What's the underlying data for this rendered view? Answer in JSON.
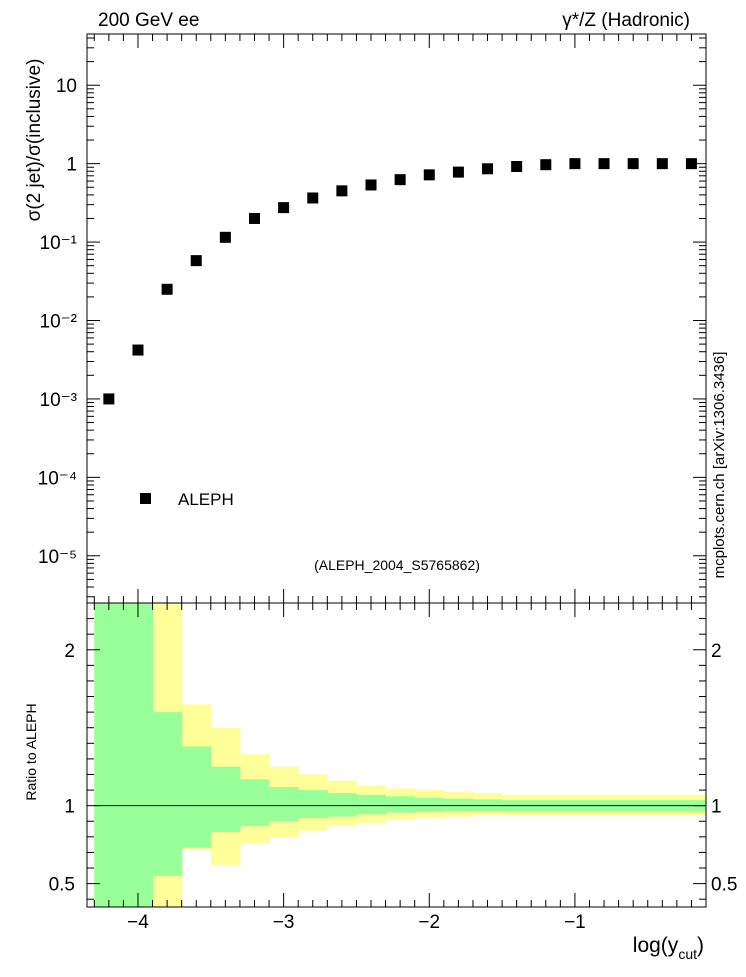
{
  "header": {
    "left_label": "200 GeV ee",
    "right_label": "γ*/Z (Hadronic)"
  },
  "side_label": "mcplots.cern.ch [arXiv:1306.3436]",
  "chart_data": [
    {
      "type": "scatter",
      "panel": "main",
      "ylabel": "σ(2 jet)/σ(inclusive)",
      "yscale": "log",
      "ylim": [
        2.5e-06,
        45
      ],
      "xlim": [
        -4.35,
        -0.1
      ],
      "ytick_labels": [
        "10",
        "1",
        "10⁻¹",
        "10⁻²",
        "10⁻³",
        "10⁻⁴",
        "10⁻⁵"
      ],
      "legend": {
        "position": "bottom-left",
        "entries": [
          "ALEPH"
        ]
      },
      "annotation": "(ALEPH_2004_S5765862)",
      "series": [
        {
          "name": "ALEPH",
          "marker": "square",
          "color": "#000000",
          "x": [
            -4.2,
            -4.0,
            -3.8,
            -3.6,
            -3.4,
            -3.2,
            -3.0,
            -2.8,
            -2.6,
            -2.4,
            -2.2,
            -2.0,
            -1.8,
            -1.6,
            -1.4,
            -1.2,
            -1.0,
            -0.8,
            -0.6,
            -0.4,
            -0.2
          ],
          "y": [
            0.001,
            0.0042,
            0.025,
            0.058,
            0.115,
            0.2,
            0.275,
            0.365,
            0.45,
            0.535,
            0.625,
            0.72,
            0.78,
            0.86,
            0.92,
            0.97,
            1.0,
            1.0,
            1.0,
            1.0,
            1.0
          ]
        }
      ]
    },
    {
      "type": "area",
      "panel": "ratio",
      "ylabel": "Ratio to ALEPH",
      "xlabel": "log(y_cut)",
      "xlabel_main": "log(y",
      "xlabel_sub": "cut",
      "xlabel_close": ")",
      "ylim": [
        0.35,
        2.3
      ],
      "xlim": [
        -4.35,
        -0.1
      ],
      "ytick_labels": [
        "2",
        "1",
        "0.5"
      ],
      "xtick_labels": [
        "−4",
        "−3",
        "−2",
        "−1"
      ],
      "reference_line": 1.0,
      "colors": {
        "inner": "#99ff99",
        "outer": "#ffff99",
        "line": "#000000"
      },
      "bin_edges": [
        -4.3,
        -4.1,
        -3.9,
        -3.7,
        -3.5,
        -3.3,
        -3.1,
        -2.9,
        -2.7,
        -2.5,
        -2.3,
        -2.1,
        -1.9,
        -1.7,
        -1.5,
        -1.3,
        -1.1,
        -0.9,
        -0.7,
        -0.5,
        -0.3,
        -0.1
      ],
      "inner_band": {
        "upper": [
          2.3,
          2.3,
          1.6,
          1.38,
          1.25,
          1.17,
          1.12,
          1.1,
          1.08,
          1.07,
          1.06,
          1.05,
          1.045,
          1.04,
          1.035,
          1.035,
          1.035,
          1.035,
          1.035,
          1.035,
          1.035
        ],
        "lower": [
          0.35,
          0.35,
          0.55,
          0.73,
          0.83,
          0.87,
          0.9,
          0.92,
          0.93,
          0.945,
          0.955,
          0.96,
          0.965,
          0.965,
          0.965,
          0.965,
          0.965,
          0.965,
          0.965,
          0.965,
          0.965
        ]
      },
      "outer_band": {
        "upper": [
          2.3,
          2.3,
          2.3,
          1.65,
          1.5,
          1.33,
          1.25,
          1.2,
          1.16,
          1.13,
          1.11,
          1.1,
          1.09,
          1.08,
          1.07,
          1.07,
          1.07,
          1.07,
          1.07,
          1.07,
          1.07
        ],
        "lower": [
          0.35,
          0.35,
          0.35,
          0.72,
          0.62,
          0.76,
          0.8,
          0.84,
          0.87,
          0.89,
          0.91,
          0.92,
          0.93,
          0.935,
          0.94,
          0.94,
          0.94,
          0.94,
          0.94,
          0.94,
          0.94
        ]
      }
    }
  ]
}
